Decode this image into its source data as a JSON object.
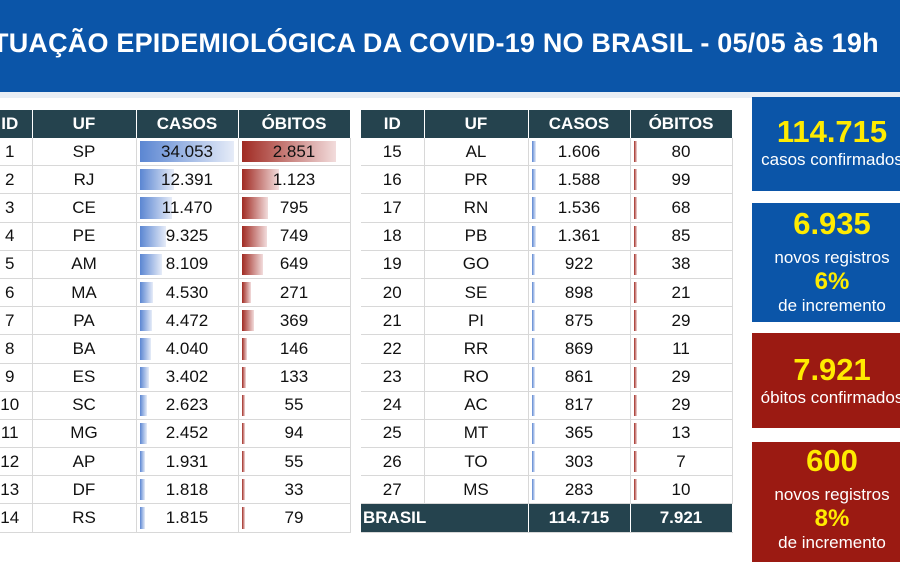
{
  "header": {
    "title": "TUAÇÃO EPIDEMIOLÓGICA DA COVID-19 NO BRASIL - 05/05 às 19h"
  },
  "table_left": {
    "columns": [
      "ID",
      "UF",
      "CASOS",
      "ÓBITOS"
    ],
    "rows": [
      {
        "id": "1",
        "uf": "SP",
        "casos": "34.053",
        "obitos": "2.851",
        "casos_n": 34053,
        "obitos_n": 2851
      },
      {
        "id": "2",
        "uf": "RJ",
        "casos": "12.391",
        "obitos": "1.123",
        "casos_n": 12391,
        "obitos_n": 1123
      },
      {
        "id": "3",
        "uf": "CE",
        "casos": "11.470",
        "obitos": "795",
        "casos_n": 11470,
        "obitos_n": 795
      },
      {
        "id": "4",
        "uf": "PE",
        "casos": "9.325",
        "obitos": "749",
        "casos_n": 9325,
        "obitos_n": 749
      },
      {
        "id": "5",
        "uf": "AM",
        "casos": "8.109",
        "obitos": "649",
        "casos_n": 8109,
        "obitos_n": 649
      },
      {
        "id": "6",
        "uf": "MA",
        "casos": "4.530",
        "obitos": "271",
        "casos_n": 4530,
        "obitos_n": 271
      },
      {
        "id": "7",
        "uf": "PA",
        "casos": "4.472",
        "obitos": "369",
        "casos_n": 4472,
        "obitos_n": 369
      },
      {
        "id": "8",
        "uf": "BA",
        "casos": "4.040",
        "obitos": "146",
        "casos_n": 4040,
        "obitos_n": 146
      },
      {
        "id": "9",
        "uf": "ES",
        "casos": "3.402",
        "obitos": "133",
        "casos_n": 3402,
        "obitos_n": 133
      },
      {
        "id": "10",
        "uf": "SC",
        "casos": "2.623",
        "obitos": "55",
        "casos_n": 2623,
        "obitos_n": 55
      },
      {
        "id": "11",
        "uf": "MG",
        "casos": "2.452",
        "obitos": "94",
        "casos_n": 2452,
        "obitos_n": 94
      },
      {
        "id": "12",
        "uf": "AP",
        "casos": "1.931",
        "obitos": "55",
        "casos_n": 1931,
        "obitos_n": 55
      },
      {
        "id": "13",
        "uf": "DF",
        "casos": "1.818",
        "obitos": "33",
        "casos_n": 1818,
        "obitos_n": 33
      },
      {
        "id": "14",
        "uf": "RS",
        "casos": "1.815",
        "obitos": "79",
        "casos_n": 1815,
        "obitos_n": 79
      }
    ]
  },
  "table_right": {
    "columns": [
      "ID",
      "UF",
      "CASOS",
      "ÓBITOS"
    ],
    "rows": [
      {
        "id": "15",
        "uf": "AL",
        "casos": "1.606",
        "obitos": "80",
        "casos_n": 1606,
        "obitos_n": 80
      },
      {
        "id": "16",
        "uf": "PR",
        "casos": "1.588",
        "obitos": "99",
        "casos_n": 1588,
        "obitos_n": 99
      },
      {
        "id": "17",
        "uf": "RN",
        "casos": "1.536",
        "obitos": "68",
        "casos_n": 1536,
        "obitos_n": 68
      },
      {
        "id": "18",
        "uf": "PB",
        "casos": "1.361",
        "obitos": "85",
        "casos_n": 1361,
        "obitos_n": 85
      },
      {
        "id": "19",
        "uf": "GO",
        "casos": "922",
        "obitos": "38",
        "casos_n": 922,
        "obitos_n": 38
      },
      {
        "id": "20",
        "uf": "SE",
        "casos": "898",
        "obitos": "21",
        "casos_n": 898,
        "obitos_n": 21
      },
      {
        "id": "21",
        "uf": "PI",
        "casos": "875",
        "obitos": "29",
        "casos_n": 875,
        "obitos_n": 29
      },
      {
        "id": "22",
        "uf": "RR",
        "casos": "869",
        "obitos": "11",
        "casos_n": 869,
        "obitos_n": 11
      },
      {
        "id": "23",
        "uf": "RO",
        "casos": "861",
        "obitos": "29",
        "casos_n": 861,
        "obitos_n": 29
      },
      {
        "id": "24",
        "uf": "AC",
        "casos": "817",
        "obitos": "29",
        "casos_n": 817,
        "obitos_n": 29
      },
      {
        "id": "25",
        "uf": "MT",
        "casos": "365",
        "obitos": "13",
        "casos_n": 365,
        "obitos_n": 13
      },
      {
        "id": "26",
        "uf": "TO",
        "casos": "303",
        "obitos": "7",
        "casos_n": 303,
        "obitos_n": 7
      },
      {
        "id": "27",
        "uf": "MS",
        "casos": "283",
        "obitos": "10",
        "casos_n": 283,
        "obitos_n": 10
      }
    ],
    "total": {
      "label": "BRASIL",
      "casos": "114.715",
      "obitos": "7.921"
    }
  },
  "bar_scale": {
    "casos_max": 34053,
    "obitos_max": 2851
  },
  "cards": [
    {
      "big": "114.715",
      "lines": [
        "casos confirmados"
      ],
      "theme": "blue"
    },
    {
      "big": "6.935",
      "lines": [
        "novos registros",
        "6%",
        "de incremento"
      ],
      "theme": "blue"
    },
    {
      "big": "7.921",
      "lines": [
        "óbitos confirmados"
      ],
      "theme": "red"
    },
    {
      "big": "600",
      "lines": [
        "novos registros",
        "8%",
        "de incremento"
      ],
      "theme": "red"
    }
  ],
  "colors": {
    "banner": "#0b55a8",
    "header_row": "#25434e",
    "card_red": "#9b1a12",
    "highlight_yellow": "#ffeb00",
    "bar_blue": "#5b86d2",
    "bar_red": "#a02a22"
  }
}
